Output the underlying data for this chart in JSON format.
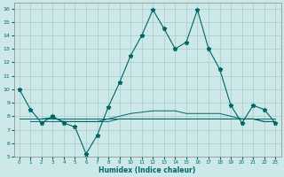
{
  "xlabel": "Humidex (Indice chaleur)",
  "bg_color": "#cce8e8",
  "grid_color": "#aacccc",
  "line_color": "#006666",
  "xlim": [
    -0.5,
    23.5
  ],
  "ylim": [
    5,
    16.4
  ],
  "yticks": [
    5,
    6,
    7,
    8,
    9,
    10,
    11,
    12,
    13,
    14,
    15,
    16
  ],
  "xticks": [
    0,
    1,
    2,
    3,
    4,
    5,
    6,
    7,
    8,
    9,
    10,
    11,
    12,
    13,
    14,
    15,
    16,
    17,
    18,
    19,
    20,
    21,
    22,
    23
  ],
  "series1_x": [
    0,
    1,
    2,
    3,
    4,
    5,
    6,
    7,
    8,
    9,
    10,
    11,
    12,
    13,
    14,
    15,
    16,
    17,
    18,
    19,
    20,
    21,
    22,
    23
  ],
  "series1_y": [
    10,
    8.5,
    7.5,
    8.0,
    7.5,
    7.2,
    5.2,
    6.6,
    8.7,
    10.5,
    12.5,
    14.0,
    15.9,
    14.5,
    13.0,
    13.5,
    15.9,
    13.0,
    11.5,
    8.8,
    7.5,
    8.8,
    8.5,
    7.5
  ],
  "series2_x": [
    0,
    1,
    2,
    3,
    4,
    5,
    6,
    7,
    8,
    9,
    10,
    11,
    12,
    13,
    14,
    15,
    16,
    17,
    18,
    19,
    20,
    21,
    22,
    23
  ],
  "series2_y": [
    7.8,
    7.8,
    7.8,
    7.8,
    7.8,
    7.8,
    7.8,
    7.8,
    7.8,
    7.8,
    7.8,
    7.8,
    7.8,
    7.8,
    7.8,
    7.8,
    7.8,
    7.8,
    7.8,
    7.8,
    7.8,
    7.8,
    7.8,
    7.8
  ],
  "series3_x": [
    1,
    2,
    3,
    4,
    5,
    6,
    7,
    8,
    9,
    10,
    11,
    12,
    13,
    14,
    15,
    16,
    17,
    18,
    19,
    20,
    21,
    22,
    23
  ],
  "series3_y": [
    7.6,
    7.6,
    7.6,
    7.6,
    7.6,
    7.6,
    7.6,
    7.8,
    8.0,
    8.2,
    8.3,
    8.4,
    8.4,
    8.4,
    8.2,
    8.2,
    8.2,
    8.2,
    8.0,
    7.8,
    7.8,
    7.6,
    7.6
  ],
  "series4_x": [
    2,
    3,
    4,
    5,
    6,
    7,
    8,
    9,
    10,
    11,
    12,
    13,
    14,
    15,
    16,
    17,
    18,
    19,
    20,
    21,
    22,
    23
  ],
  "series4_y": [
    7.8,
    7.9,
    7.6,
    7.6,
    7.6,
    7.6,
    7.6,
    7.8,
    7.8,
    7.8,
    7.8,
    7.8,
    7.8,
    7.8,
    7.8,
    7.8,
    7.8,
    7.8,
    7.8,
    7.8,
    7.6,
    7.6
  ]
}
